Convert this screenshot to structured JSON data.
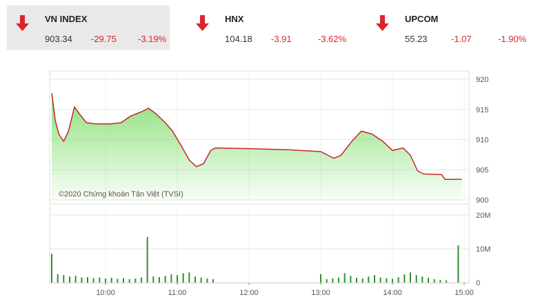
{
  "header": {
    "indices": [
      {
        "name": "VN INDEX",
        "value": "903.34",
        "change": "-29.75",
        "pct": "-3.19%"
      },
      {
        "name": "HNX",
        "value": "104.18",
        "change": "-3.91",
        "pct": "-3.62%"
      },
      {
        "name": "UPCOM",
        "value": "55.23",
        "change": "-1.07",
        "pct": "-1.90%"
      }
    ]
  },
  "chart_data": [
    {
      "type": "area",
      "annotation": "©2020 Chứng khoán Tân Việt (TVSI)",
      "x": [
        555,
        558,
        561,
        565,
        569,
        574,
        578,
        584,
        592,
        604,
        613,
        621,
        630,
        636,
        642,
        650,
        656,
        663,
        670,
        676,
        682,
        688,
        692,
        719,
        754,
        780,
        791,
        797,
        806,
        814,
        823,
        832,
        840,
        849,
        855,
        861,
        866,
        881,
        884,
        898
      ],
      "values": [
        917.7,
        913.1,
        910.9,
        909.7,
        911.4,
        915.4,
        914.3,
        912.8,
        912.6,
        912.6,
        912.8,
        913.9,
        914.6,
        915.2,
        914.3,
        912.8,
        911.4,
        909.1,
        906.6,
        905.5,
        906.0,
        908.2,
        908.6,
        908.5,
        908.3,
        908.0,
        906.9,
        907.4,
        909.7,
        911.4,
        910.9,
        909.7,
        908.2,
        908.6,
        907.4,
        904.8,
        904.3,
        904.2,
        903.4,
        903.4
      ],
      "color": "#c0282a",
      "fill_color": "#7fdc6a",
      "xlim": [
        555,
        900
      ],
      "ylim": [
        900,
        920
      ],
      "yticks": [
        900,
        905,
        910,
        915,
        920
      ],
      "xticks": [
        {
          "value": 600,
          "label": "10:00"
        },
        {
          "value": 660,
          "label": "11:00"
        },
        {
          "value": 720,
          "label": "12:00"
        },
        {
          "value": 780,
          "label": "13:00"
        },
        {
          "value": 840,
          "label": "14:00"
        },
        {
          "value": 900,
          "label": "15:00"
        }
      ],
      "grid": true
    },
    {
      "type": "bar",
      "x": [
        555,
        560,
        565,
        570,
        575,
        580,
        585,
        590,
        595,
        600,
        605,
        610,
        615,
        620,
        625,
        630,
        635,
        640,
        645,
        650,
        655,
        660,
        665,
        670,
        675,
        680,
        685,
        690,
        780,
        785,
        790,
        795,
        800,
        805,
        810,
        815,
        820,
        825,
        830,
        835,
        840,
        845,
        850,
        855,
        860,
        865,
        870,
        875,
        880,
        885,
        895
      ],
      "values": [
        8500000,
        2500000,
        2200000,
        1800000,
        2000000,
        1500000,
        1600000,
        1300000,
        1500000,
        1200000,
        1400000,
        1100000,
        1300000,
        1000000,
        1200000,
        1500000,
        13500000,
        1800000,
        1600000,
        2000000,
        2500000,
        2200000,
        2800000,
        3000000,
        1800000,
        1500000,
        1200000,
        1000000,
        2500000,
        1000000,
        1200000,
        1500000,
        2800000,
        2000000,
        1400000,
        1200000,
        1800000,
        2200000,
        1500000,
        1300000,
        1100000,
        1600000,
        2400000,
        3000000,
        2200000,
        1800000,
        1400000,
        1000000,
        800000,
        600000,
        11000000
      ],
      "color": "#2f8f2f",
      "xlim": [
        555,
        900
      ],
      "ylim": [
        0,
        20000000
      ],
      "yticks": [
        0,
        {
          "value": 10000000,
          "label": "10M"
        },
        {
          "value": 20000000,
          "label": "20M"
        }
      ],
      "xticks": [
        {
          "value": 600,
          "label": "10:00"
        },
        {
          "value": 660,
          "label": "11:00"
        },
        {
          "value": 720,
          "label": "12:00"
        },
        {
          "value": 780,
          "label": "13:00"
        },
        {
          "value": 840,
          "label": "14:00"
        },
        {
          "value": 900,
          "label": "15:00"
        }
      ],
      "grid": true
    }
  ]
}
